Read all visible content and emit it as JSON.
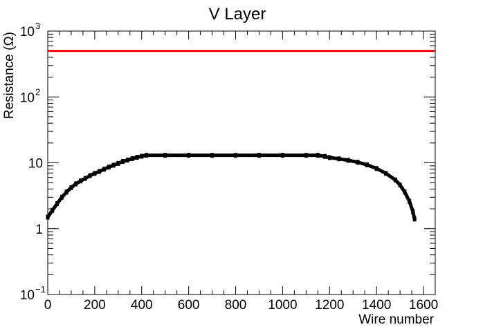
{
  "chart_data": {
    "type": "scatter",
    "title": "V Layer",
    "xlabel": "Wire number",
    "ylabel": "Resistance (Ω)",
    "xlim": [
      0,
      1650
    ],
    "ylim": [
      0.1,
      1000
    ],
    "yscale": "log",
    "grid": false,
    "legend": "none",
    "x_ticks": [
      "0",
      "200",
      "400",
      "600",
      "800",
      "1000",
      "1200",
      "1400",
      "1600"
    ],
    "y_ticks": [
      {
        "base": "10",
        "exp": "−1"
      },
      {
        "base": "1",
        "exp": ""
      },
      {
        "base": "10",
        "exp": ""
      },
      {
        "base": "10",
        "exp": "2"
      },
      {
        "base": "10",
        "exp": "3"
      }
    ],
    "reference_line": {
      "y": 500,
      "color": "#ff0000"
    },
    "series": [
      {
        "color": "#000000",
        "points": [
          [
            0,
            1.5
          ],
          [
            20,
            1.9
          ],
          [
            40,
            2.4
          ],
          [
            60,
            3.0
          ],
          [
            80,
            3.6
          ],
          [
            100,
            4.2
          ],
          [
            120,
            4.8
          ],
          [
            140,
            5.3
          ],
          [
            160,
            5.8
          ],
          [
            180,
            6.4
          ],
          [
            200,
            6.9
          ],
          [
            220,
            7.4
          ],
          [
            240,
            8.0
          ],
          [
            260,
            8.6
          ],
          [
            280,
            9.2
          ],
          [
            300,
            9.8
          ],
          [
            320,
            10.5
          ],
          [
            340,
            11.0
          ],
          [
            360,
            11.6
          ],
          [
            380,
            12.1
          ],
          [
            400,
            12.6
          ],
          [
            420,
            13.0
          ],
          [
            500,
            13.0
          ],
          [
            600,
            13.0
          ],
          [
            700,
            13.0
          ],
          [
            800,
            13.0
          ],
          [
            900,
            13.0
          ],
          [
            1000,
            13.0
          ],
          [
            1100,
            13.0
          ],
          [
            1150,
            13.0
          ],
          [
            1180,
            12.5
          ],
          [
            1200,
            12.0
          ],
          [
            1240,
            11.5
          ],
          [
            1280,
            10.9
          ],
          [
            1320,
            10.2
          ],
          [
            1360,
            9.3
          ],
          [
            1400,
            8.2
          ],
          [
            1440,
            6.9
          ],
          [
            1480,
            5.5
          ],
          [
            1500,
            4.6
          ],
          [
            1520,
            3.6
          ],
          [
            1540,
            2.6
          ],
          [
            1555,
            1.8
          ],
          [
            1562,
            1.4
          ]
        ]
      }
    ]
  }
}
